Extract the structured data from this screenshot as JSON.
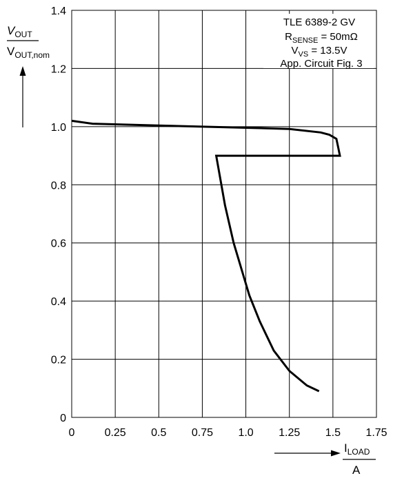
{
  "chart_data": {
    "type": "line",
    "title": "",
    "xlim": [
      0,
      1.75
    ],
    "ylim": [
      0,
      1.4
    ],
    "x_ticks": [
      "0",
      "0.25",
      "0.5",
      "0.75",
      "1.0",
      "1.25",
      "1.5",
      "1.75"
    ],
    "y_ticks": [
      "0",
      "0.2",
      "0.4",
      "0.6",
      "0.8",
      "1.0",
      "1.2",
      "1.4"
    ],
    "x_tick_values": [
      0,
      0.25,
      0.5,
      0.75,
      1.0,
      1.25,
      1.5,
      1.75
    ],
    "y_tick_values": [
      0,
      0.2,
      0.4,
      0.6,
      0.8,
      1.0,
      1.2,
      1.4
    ],
    "grid": true,
    "xlabel": {
      "main": "I",
      "sub": "LOAD",
      "denominator": "A"
    },
    "ylabel": {
      "main": "V",
      "main_sub": "OUT",
      "denominator": "V",
      "denominator_sub": "OUT,nom"
    },
    "annotation": {
      "line1": "TLE 6389-2 GV",
      "line2_main": "R",
      "line2_sub": "SENSE",
      "line2_rest": " = 50mΩ",
      "line3_main": "V",
      "line3_sub": "VS",
      "line3_rest": " = 13.5V",
      "line4": "App. Circuit Fig. 3"
    },
    "series": [
      {
        "x": [
          0,
          0.12,
          0.5,
          0.75,
          1.0,
          1.25,
          1.43,
          1.48,
          1.52,
          1.53,
          1.54,
          1.25,
          0.83,
          0.88,
          0.93,
          0.98,
          1.02,
          1.08,
          1.16,
          1.25,
          1.35,
          1.42
        ],
        "y": [
          1.02,
          1.01,
          1.004,
          1.0,
          0.996,
          0.992,
          0.98,
          0.972,
          0.958,
          0.93,
          0.9,
          0.9,
          0.9,
          0.73,
          0.6,
          0.5,
          0.42,
          0.33,
          0.23,
          0.16,
          0.11,
          0.09
        ]
      }
    ]
  }
}
